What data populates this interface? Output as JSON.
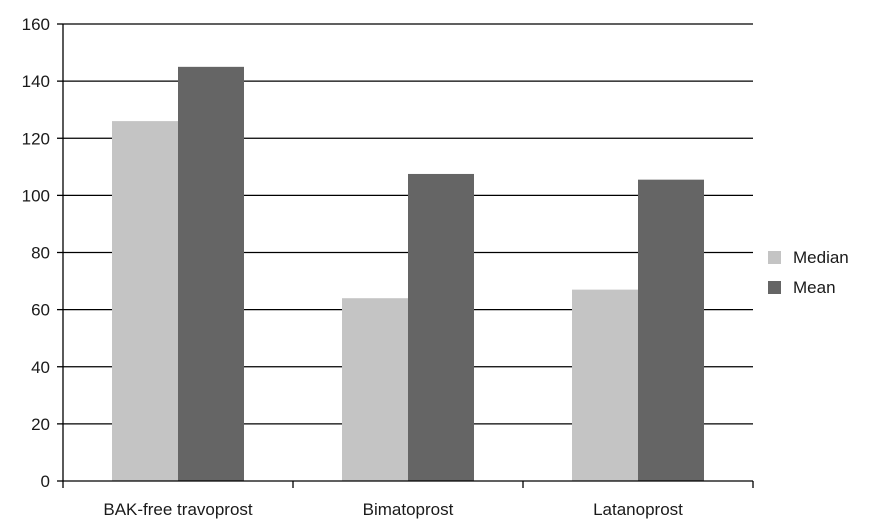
{
  "chart_data": {
    "type": "bar",
    "title": "",
    "xlabel": "",
    "ylabel": "",
    "categories": [
      "BAK-free travoprost",
      "Bimatoprost",
      "Latanoprost"
    ],
    "series": [
      {
        "name": "Median",
        "values": [
          126,
          64,
          67
        ],
        "color": "#c4c4c4"
      },
      {
        "name": "Mean",
        "values": [
          145,
          107.5,
          105.5
        ],
        "color": "#656565"
      }
    ],
    "ylim": [
      0,
      160
    ],
    "yticks": [
      0,
      20,
      40,
      60,
      80,
      100,
      120,
      140,
      160
    ],
    "grid": true,
    "legend_position": "right"
  }
}
